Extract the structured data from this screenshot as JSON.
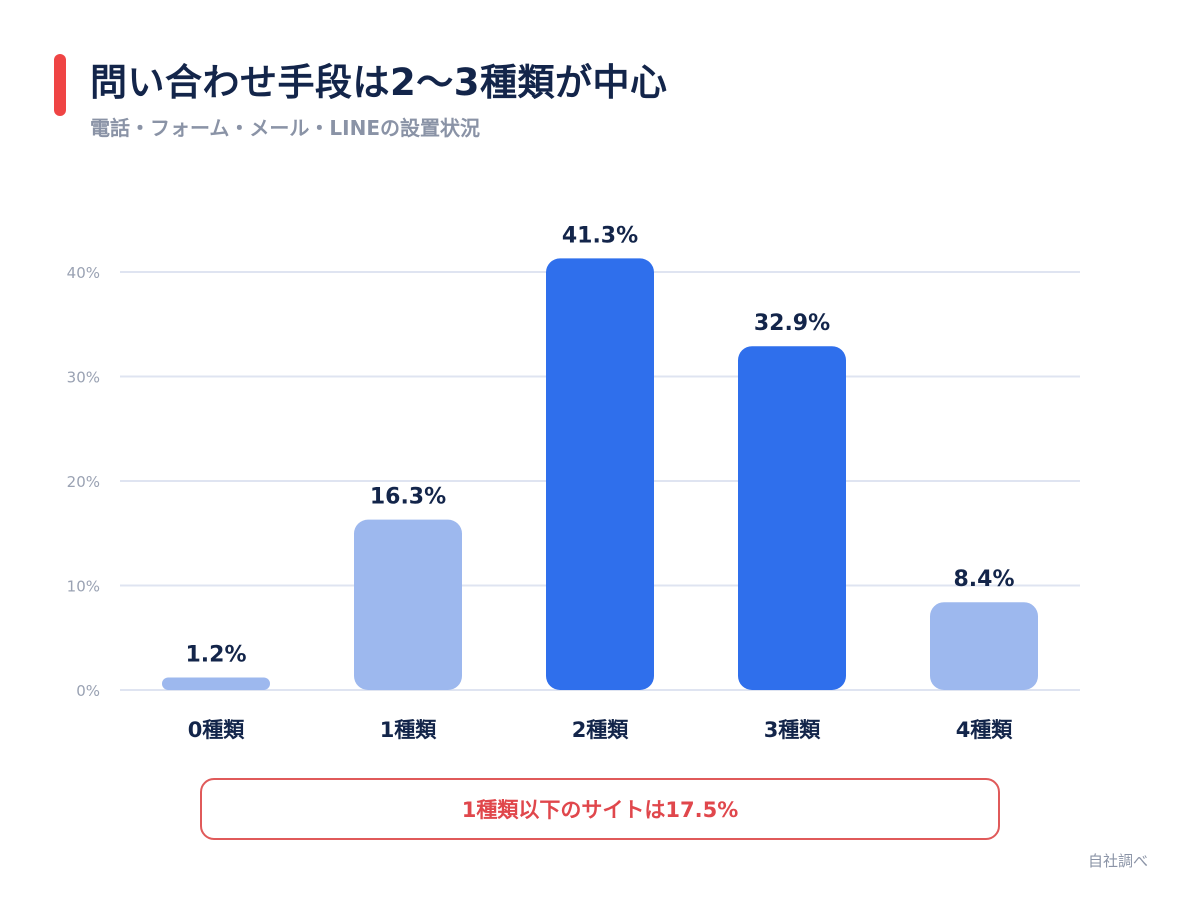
{
  "header": {
    "title": "問い合わせ手段は2〜3種類が中心",
    "subtitle": "電話・フォーム・メール・LINEの設置状況"
  },
  "colors": {
    "accent": "#ef4444",
    "bar_primary": "#2f6fec",
    "bar_secondary": "#9db8ee",
    "title": "#13254a",
    "note": "#e0474c"
  },
  "chart_data": {
    "type": "bar",
    "title": "問い合わせ手段は2〜3種類が中心",
    "subtitle": "電話・フォーム・メール・LINEの設置状況",
    "categories": [
      "0種類",
      "1種類",
      "2種類",
      "3種類",
      "4種類"
    ],
    "values": [
      1.2,
      16.3,
      41.3,
      32.9,
      8.4
    ],
    "value_labels": [
      "1.2%",
      "16.3%",
      "41.3%",
      "32.9%",
      "8.4%"
    ],
    "highlighted": [
      false,
      false,
      true,
      true,
      false
    ],
    "y_ticks": [
      0,
      10,
      20,
      30,
      40
    ],
    "y_tick_labels": [
      "0%",
      "10%",
      "20%",
      "30%",
      "40%"
    ],
    "ylim": [
      0,
      40
    ],
    "grid": true,
    "legend": "none",
    "xlabel": "",
    "ylabel": ""
  },
  "note": {
    "text": "1種類以下のサイトは17.5%"
  },
  "footer": {
    "source": "自社調べ"
  }
}
